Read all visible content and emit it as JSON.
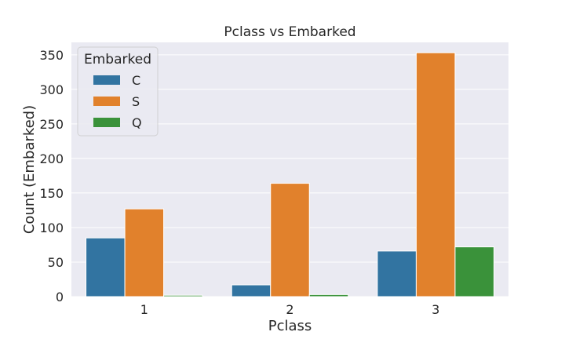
{
  "chart_data": {
    "type": "bar",
    "title": "Pclass vs Embarked",
    "xlabel": "Pclass",
    "ylabel": "Count (Embarked)",
    "categories": [
      "1",
      "2",
      "3"
    ],
    "series": [
      {
        "name": "C",
        "values": [
          85,
          17,
          66
        ],
        "color": "#3274a1"
      },
      {
        "name": "S",
        "values": [
          127,
          164,
          353
        ],
        "color": "#e1812c"
      },
      {
        "name": "Q",
        "values": [
          2,
          3,
          72
        ],
        "color": "#3a923a"
      }
    ],
    "ylim": [
      0,
      368
    ],
    "yticks": [
      0,
      50,
      100,
      150,
      200,
      250,
      300,
      350
    ],
    "grid": true,
    "background": "#eaeaf2",
    "legend": {
      "title": "Embarked",
      "position": "top-left"
    }
  }
}
